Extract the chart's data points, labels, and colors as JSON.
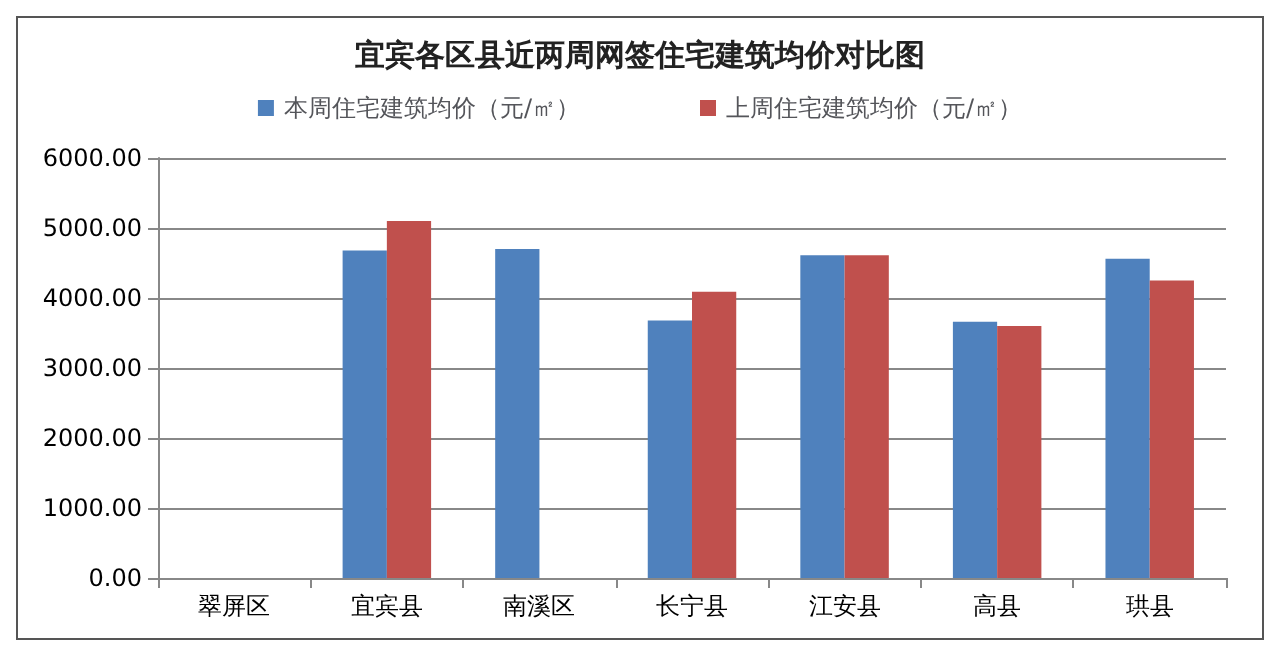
{
  "chart_data": {
    "type": "bar",
    "title": "宜宾各区县近两周网签住宅建筑均价对比图",
    "categories": [
      "翠屏区",
      "宜宾县",
      "南溪区",
      "长宁县",
      "江安县",
      "高县",
      "珙县"
    ],
    "series": [
      {
        "name": "本周住宅建筑均价（元/㎡）",
        "color": "#4f81bd",
        "values": [
          null,
          4680,
          4700,
          3680,
          4610,
          3660,
          4560
        ]
      },
      {
        "name": "上周住宅建筑均价（元/㎡）",
        "color": "#c0504d",
        "values": [
          null,
          5100,
          null,
          4090,
          4610,
          3600,
          4250
        ]
      }
    ],
    "ylim": [
      0,
      6000
    ],
    "yticks": [
      {
        "value": 0,
        "label": "0.00"
      },
      {
        "value": 1000,
        "label": "1000.00"
      },
      {
        "value": 2000,
        "label": "2000.00"
      },
      {
        "value": 3000,
        "label": "3000.00"
      },
      {
        "value": 4000,
        "label": "4000.00"
      },
      {
        "value": 5000,
        "label": "5000.00"
      },
      {
        "value": 6000,
        "label": "6000.00"
      }
    ],
    "grid": "y",
    "legend": "top"
  }
}
